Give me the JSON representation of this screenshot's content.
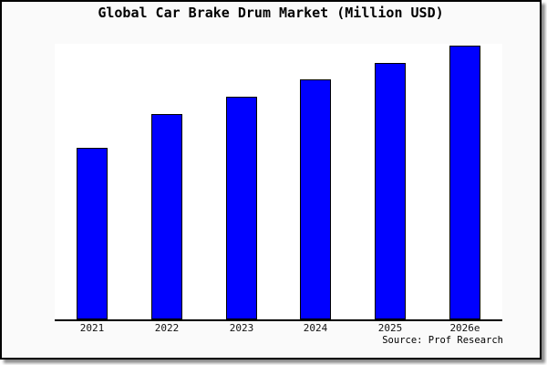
{
  "title": "Global Car Brake Drum Market (Million USD)",
  "source_credit": "Source: Prof Research",
  "colors": {
    "bar_fill": "#0000ff",
    "bar_edge": "#000000",
    "figure_bg": "#fafafa",
    "plot_bg": "#ffffff",
    "axis_line": "#000000",
    "border": "#000000"
  },
  "chart_data": {
    "type": "bar",
    "title": "Global Car Brake Drum Market (Million USD)",
    "categories": [
      "2021",
      "2022",
      "2023",
      "2024",
      "2025",
      "2026e"
    ],
    "values": [
      62.7,
      75.0,
      81.3,
      87.7,
      93.8,
      100
    ],
    "values_note": "no numeric value axis shown in chart; values are relative bar heights with 2026e = 100",
    "xlabel": "",
    "ylabel": "",
    "ylim": [
      0,
      100.7
    ],
    "grid": false,
    "legend": false,
    "bar_color": "#0000ff",
    "bar_edge_color": "#000000"
  }
}
